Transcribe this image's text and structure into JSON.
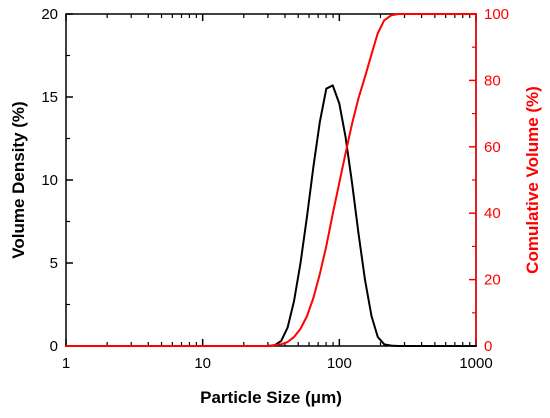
{
  "chart_data": {
    "type": "line",
    "title": "",
    "xlabel": "Particle Size (μm)",
    "ylabel": "Volume Density (%)",
    "y2label": "Comulative Volume (%)",
    "xscale": "log",
    "xlim": [
      1,
      1000
    ],
    "ylim": [
      0,
      20
    ],
    "y2lim": [
      0,
      100
    ],
    "grid": false,
    "legend": "none",
    "x_ticks": [
      {
        "value": 1,
        "label": "1"
      },
      {
        "value": 10,
        "label": "10"
      },
      {
        "value": 100,
        "label": "100"
      },
      {
        "value": 1000,
        "label": "1000"
      }
    ],
    "y_ticks": [
      {
        "value": 0,
        "label": "0"
      },
      {
        "value": 5,
        "label": "5"
      },
      {
        "value": 10,
        "label": "10"
      },
      {
        "value": 15,
        "label": "15"
      },
      {
        "value": 20,
        "label": "20"
      }
    ],
    "y2_ticks": [
      {
        "value": 0,
        "label": "0"
      },
      {
        "value": 20,
        "label": "20"
      },
      {
        "value": 40,
        "label": "40"
      },
      {
        "value": 60,
        "label": "60"
      },
      {
        "value": 80,
        "label": "80"
      },
      {
        "value": 100,
        "label": "100"
      }
    ],
    "series": [
      {
        "axis": "left",
        "color": "#000000",
        "x": [
          1,
          30,
          33.7,
          37.5,
          41.8,
          46.6,
          52,
          58,
          64.6,
          72,
          80.3,
          89.5,
          100,
          111,
          124,
          138,
          154,
          172,
          191,
          213,
          240,
          270,
          1000
        ],
        "y": [
          0,
          0,
          0.05,
          0.3,
          1.1,
          2.7,
          5.0,
          7.8,
          10.8,
          13.5,
          15.5,
          15.7,
          14.6,
          12.6,
          9.8,
          6.8,
          4.0,
          1.8,
          0.55,
          0.1,
          0.02,
          0,
          0
        ]
      },
      {
        "axis": "right",
        "color": "#ff0000",
        "x": [
          1,
          30,
          37.5,
          41.8,
          46.6,
          52,
          58,
          64.6,
          72,
          80.3,
          89.5,
          100,
          111,
          124,
          138,
          154,
          172,
          191,
          213,
          240,
          270,
          1000
        ],
        "y": [
          0,
          0,
          0.5,
          1.2,
          2.7,
          5.2,
          9.0,
          14.5,
          21.7,
          30.1,
          39.8,
          49.2,
          58.0,
          67.0,
          74.6,
          81.0,
          87.9,
          94.2,
          98.1,
          99.6,
          100,
          100
        ]
      }
    ]
  }
}
